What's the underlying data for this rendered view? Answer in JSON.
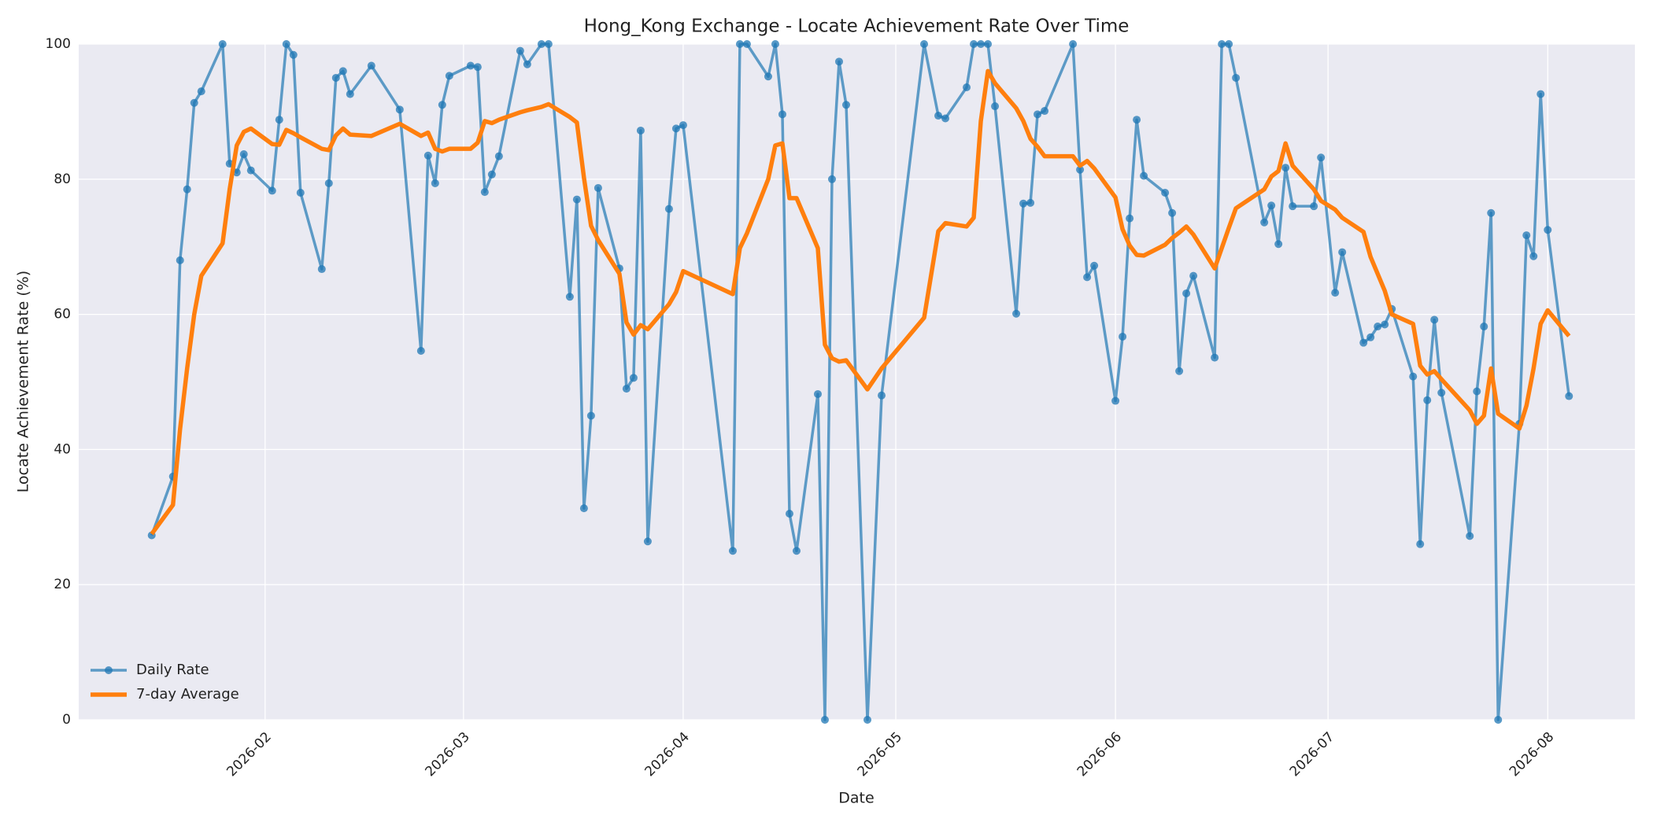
{
  "chart_data": {
    "type": "line",
    "title": "Hong_Kong Exchange - Locate Achievement Rate Over Time",
    "x_label": "Date",
    "y_label": "Locate Achievement Rate (%)",
    "x": [
      20469,
      20472,
      20473,
      20474,
      20475,
      20476,
      20479,
      20480,
      20481,
      20482,
      20483,
      20486,
      20487,
      20488,
      20489,
      20490,
      20493,
      20494,
      20495,
      20496,
      20497,
      20500,
      20504,
      20507,
      20508,
      20509,
      20510,
      20511,
      20514,
      20515,
      20516,
      20517,
      20518,
      20521,
      20522,
      20524,
      20525,
      20528,
      20529,
      20530,
      20531,
      20532,
      20535,
      20536,
      20537,
      20538,
      20539,
      20542,
      20543,
      20544,
      20551,
      20552,
      20553,
      20556,
      20557,
      20558,
      20559,
      20560,
      20563,
      20564,
      20565,
      20566,
      20567,
      20570,
      20572,
      20578,
      20580,
      20581,
      20584,
      20585,
      20586,
      20587,
      20588,
      20591,
      20592,
      20593,
      20594,
      20595,
      20599,
      20600,
      20601,
      20602,
      20605,
      20606,
      20607,
      20608,
      20609,
      20612,
      20613,
      20614,
      20615,
      20616,
      20619,
      20620,
      20621,
      20622,
      20626,
      20627,
      20628,
      20629,
      20630,
      20633,
      20634,
      20636,
      20637,
      20640,
      20641,
      20642,
      20643,
      20644,
      20647,
      20648,
      20649,
      20650,
      20651,
      20655,
      20656,
      20657,
      20658,
      20659,
      20662,
      20663,
      20664,
      20665,
      20666,
      20669
    ],
    "series": [
      {
        "name": "Daily Rate",
        "color": "#1f77b4",
        "marker": true,
        "values": [
          27.3,
          36,
          68,
          78.5,
          91.3,
          93,
          100,
          82.3,
          81,
          83.7,
          81.3,
          78.3,
          88.8,
          100,
          98.4,
          78,
          66.7,
          79.4,
          95,
          96,
          92.6,
          96.8,
          90.3,
          54.6,
          83.5,
          79.4,
          91,
          95.3,
          96.8,
          96.6,
          78.1,
          80.7,
          83.4,
          99,
          97,
          100,
          100,
          62.6,
          77,
          31.3,
          45,
          78.7,
          66.8,
          49,
          50.6,
          87.2,
          26.4,
          75.6,
          87.5,
          88,
          25,
          100,
          100,
          95.2,
          100,
          89.6,
          30.5,
          25,
          48.2,
          0,
          80,
          97.4,
          91,
          0,
          48,
          100,
          89.4,
          89,
          93.6,
          100,
          100,
          100,
          90.8,
          60.1,
          76.4,
          76.5,
          89.6,
          90.1,
          100,
          81.4,
          65.5,
          67.2,
          47.2,
          56.7,
          74.2,
          88.8,
          80.5,
          78,
          75,
          51.6,
          63.1,
          65.7,
          53.6,
          100,
          100,
          95,
          73.6,
          76.1,
          70.4,
          81.7,
          76,
          76,
          83.2,
          63.2,
          69.2,
          55.8,
          56.6,
          58.2,
          58.5,
          60.8,
          50.8,
          26,
          47.3,
          59.2,
          48.4,
          27.2,
          48.6,
          58.2,
          75,
          0,
          43.8,
          71.7,
          68.6,
          92.6,
          72.5,
          47.9
        ]
      },
      {
        "name": "7-day Average",
        "color": "#ff7f0e",
        "marker": false,
        "values": [
          27.5,
          31.8,
          43,
          52,
          60,
          65.7,
          70.5,
          78.5,
          85,
          87,
          87.5,
          85.2,
          85.1,
          87.3,
          86.8,
          86.2,
          84.5,
          84.3,
          86.5,
          87.5,
          86.6,
          86.4,
          88.2,
          86.4,
          86.9,
          84.5,
          84.1,
          84.5,
          84.5,
          85.4,
          88.6,
          88.3,
          88.8,
          89.9,
          90.2,
          90.7,
          91.1,
          89.2,
          88.4,
          80.2,
          73.1,
          71,
          66,
          58.8,
          57,
          58.4,
          57.8,
          61.5,
          63.3,
          66.4,
          63,
          69.8,
          72,
          80,
          85,
          85.3,
          77.2,
          77.2,
          69.8,
          55.5,
          53.5,
          53,
          53.2,
          48.9,
          52,
          59.5,
          72.3,
          73.5,
          73,
          74.3,
          88.6,
          96,
          94.2,
          90.5,
          88.6,
          86,
          84.8,
          83.4,
          83.4,
          82,
          82.7,
          81.6,
          77.3,
          72.6,
          70.2,
          68.8,
          68.7,
          70.3,
          71.3,
          72.1,
          73,
          71.8,
          66.8,
          69.8,
          72.8,
          75.7,
          78.5,
          80.4,
          81.2,
          85.3,
          82,
          78.5,
          76.8,
          75.5,
          74.3,
          72.2,
          68.5,
          66,
          63.5,
          60,
          58.6,
          52.4,
          51.1,
          51.6,
          50.4,
          45.8,
          43.8,
          45,
          52,
          45.3,
          43.1,
          46.5,
          52,
          58.6,
          60.6,
          56.8
        ]
      }
    ],
    "xlim": [
      20458.7,
      20678.3
    ],
    "xticks": [
      {
        "value": 20485,
        "label": "2026-02"
      },
      {
        "value": 20513,
        "label": "2026-03"
      },
      {
        "value": 20544,
        "label": "2026-04"
      },
      {
        "value": 20574,
        "label": "2026-05"
      },
      {
        "value": 20605,
        "label": "2026-06"
      },
      {
        "value": 20635,
        "label": "2026-07"
      },
      {
        "value": 20666,
        "label": "2026-08"
      }
    ],
    "ylim": [
      0,
      100
    ],
    "yticks": [
      0,
      20,
      40,
      60,
      80,
      100
    ],
    "grid": true,
    "legend": "lower left"
  }
}
